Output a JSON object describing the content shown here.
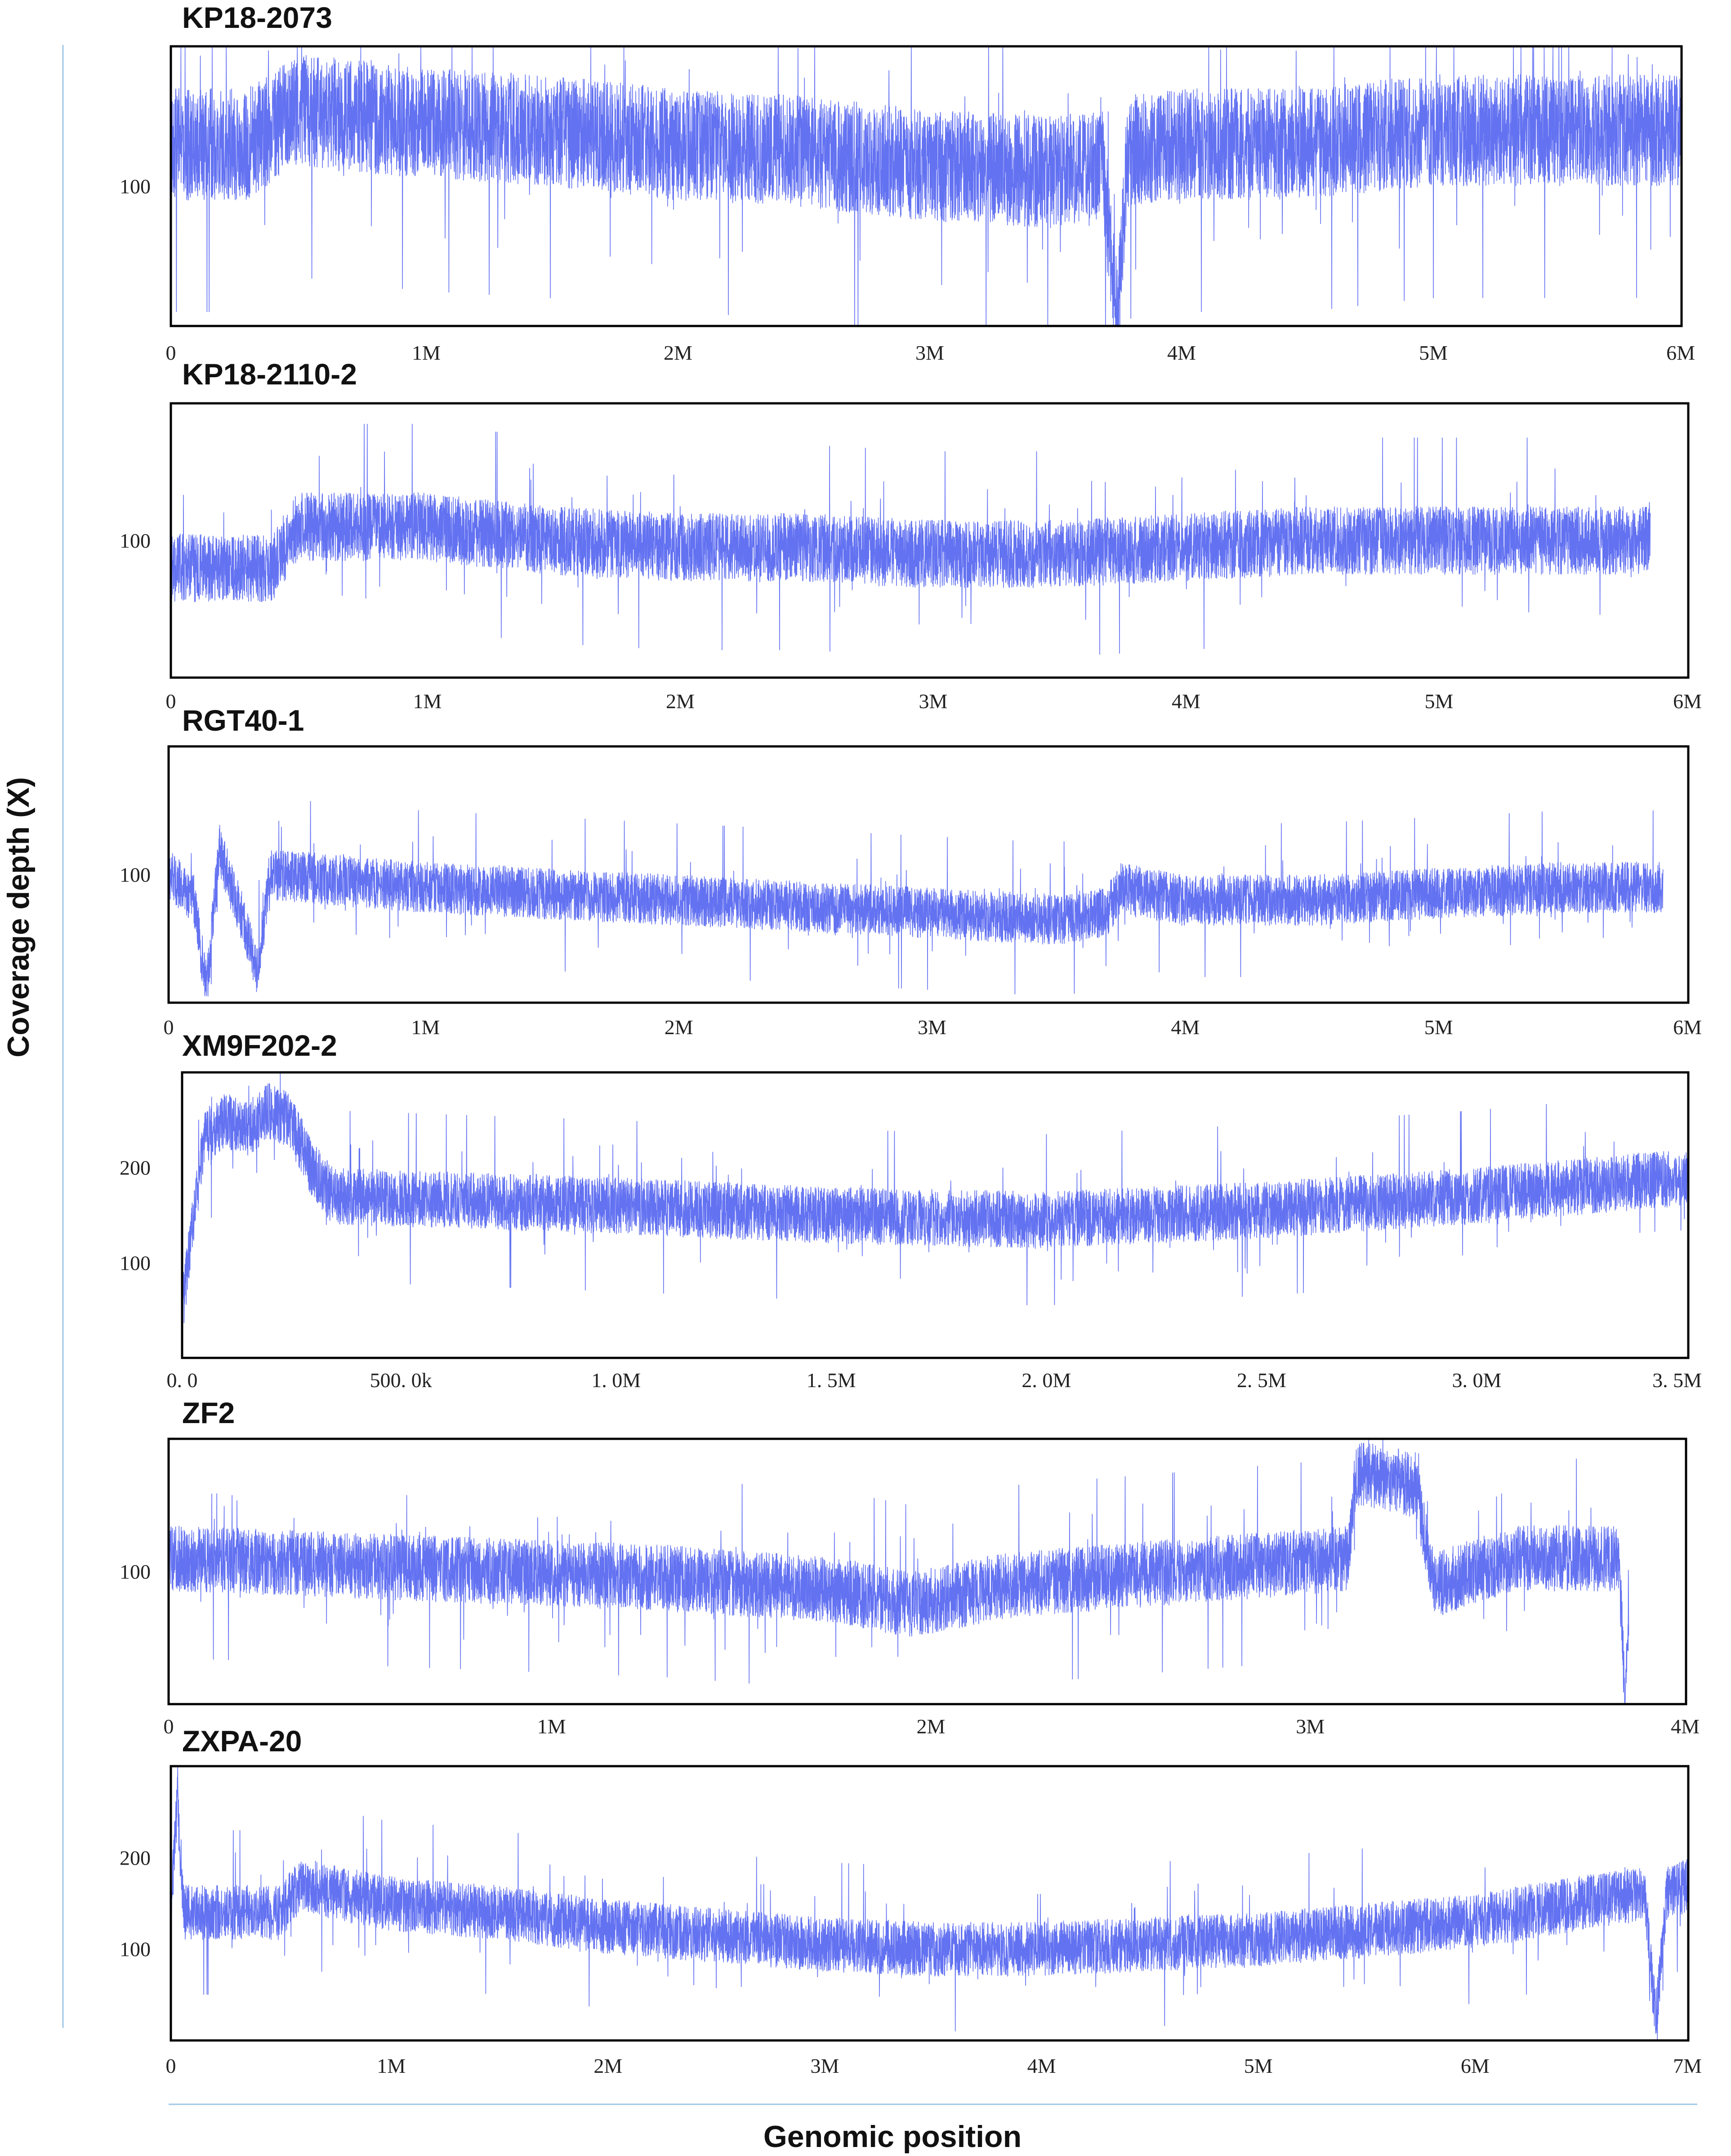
{
  "figure": {
    "ylabel": "Coverage depth (X)",
    "xlabel": "Genomic position",
    "line_color": "#5b6af0",
    "guide_color": "#9dc6e6"
  },
  "chart_data": [
    {
      "type": "line",
      "title": "KP18-2073",
      "xlim": [
        0,
        6000000
      ],
      "ylim": [
        0,
        200
      ],
      "xticks": [
        "0",
        "1M",
        "2M",
        "3M",
        "4M",
        "5M",
        "6M"
      ],
      "yticks": [
        {
          "value": 100,
          "label": "100"
        }
      ],
      "series": [
        {
          "x": [
            0,
            300000,
            500000,
            1000000,
            1500000,
            2000000,
            2500000,
            3000000,
            3500000,
            3700000,
            3760000,
            3800000,
            4000000,
            4500000,
            5000000,
            5500000,
            6000000
          ],
          "y": [
            130,
            130,
            155,
            145,
            140,
            130,
            125,
            115,
            110,
            115,
            0,
            125,
            130,
            130,
            140,
            140,
            140
          ],
          "spread": 40
        }
      ]
    },
    {
      "type": "line",
      "title": "KP18-2110-2",
      "xlim": [
        0,
        6000000
      ],
      "ylim": [
        0,
        200
      ],
      "xticks": [
        "0",
        "1M",
        "2M",
        "3M",
        "4M",
        "5M",
        "6M"
      ],
      "yticks": [
        {
          "value": 100,
          "label": "100"
        }
      ],
      "series": [
        {
          "x": [
            0,
            400000,
            500000,
            1000000,
            1500000,
            2000000,
            2500000,
            3000000,
            3500000,
            4000000,
            4500000,
            5000000,
            5500000,
            5850000
          ],
          "y": [
            80,
            80,
            110,
            110,
            100,
            95,
            95,
            90,
            90,
            95,
            100,
            100,
            100,
            100
          ],
          "spread": 25
        }
      ]
    },
    {
      "type": "line",
      "title": "RGT40-1",
      "xlim": [
        0,
        6000000
      ],
      "ylim": [
        0,
        200
      ],
      "xticks": [
        "0",
        "1M",
        "2M",
        "3M",
        "4M",
        "5M",
        "6M"
      ],
      "yticks": [
        {
          "value": 100,
          "label": "100"
        }
      ],
      "series": [
        {
          "x": [
            0,
            100000,
            150000,
            200000,
            300000,
            350000,
            400000,
            1000000,
            1500000,
            2000000,
            2500000,
            3000000,
            3500000,
            3700000,
            3760000,
            4000000,
            4500000,
            5000000,
            5500000,
            5900000
          ],
          "y": [
            100,
            80,
            10,
            120,
            60,
            25,
            100,
            90,
            85,
            80,
            75,
            70,
            65,
            70,
            90,
            80,
            80,
            85,
            90,
            90
          ],
          "spread": 20
        }
      ]
    },
    {
      "type": "line",
      "title": "XM9F202-2",
      "xlim": [
        0,
        3500000
      ],
      "ylim": [
        0,
        300
      ],
      "xticks": [
        "0. 0",
        "500. 0k",
        "1. 0M",
        "1. 5M",
        "2. 0M",
        "2. 5M",
        "3. 0M",
        "3. 5M"
      ],
      "yticks": [
        {
          "value": 100,
          "label": "100"
        },
        {
          "value": 200,
          "label": "200"
        }
      ],
      "series": [
        {
          "x": [
            0,
            50000,
            100000,
            150000,
            200000,
            250000,
            300000,
            350000,
            1000000,
            1500000,
            2000000,
            2500000,
            3000000,
            3500000
          ],
          "y": [
            50,
            230,
            250,
            240,
            260,
            250,
            200,
            170,
            160,
            150,
            145,
            155,
            170,
            190
          ],
          "spread": 30
        }
      ]
    },
    {
      "type": "line",
      "title": "ZF2",
      "xlim": [
        0,
        4500000
      ],
      "ylim": [
        0,
        200
      ],
      "xticks": [
        "0",
        "1M",
        "2M",
        "3M",
        "4M"
      ],
      "yticks": [
        {
          "value": 100,
          "label": "100"
        }
      ],
      "series": [
        {
          "x": [
            0,
            500000,
            1000000,
            1500000,
            2000000,
            2200000,
            2500000,
            3000000,
            3500000,
            3520000,
            3700000,
            3750000,
            4000000,
            4300000,
            4320000,
            4330000
          ],
          "y": [
            110,
            105,
            100,
            95,
            85,
            75,
            90,
            100,
            110,
            175,
            165,
            90,
            110,
            110,
            0,
            70
          ],
          "spread": 25
        }
      ]
    },
    {
      "type": "line",
      "title": "ZXPA-20",
      "xlim": [
        0,
        7000000
      ],
      "ylim": [
        0,
        300
      ],
      "xticks": [
        "0",
        "1M",
        "2M",
        "3M",
        "4M",
        "5M",
        "6M",
        "7M"
      ],
      "yticks": [
        {
          "value": 100,
          "label": "100"
        },
        {
          "value": 200,
          "label": "200"
        }
      ],
      "series": [
        {
          "x": [
            0,
            30000,
            60000,
            500000,
            600000,
            1000000,
            1500000,
            2000000,
            2500000,
            3000000,
            3500000,
            4000000,
            4500000,
            5000000,
            5500000,
            6000000,
            6500000,
            6800000,
            6850000,
            6900000,
            7000000
          ],
          "y": [
            140,
            260,
            140,
            140,
            170,
            150,
            140,
            125,
            115,
            105,
            100,
            100,
            105,
            110,
            120,
            130,
            150,
            160,
            20,
            160,
            170
          ],
          "spread": 30
        }
      ]
    }
  ]
}
